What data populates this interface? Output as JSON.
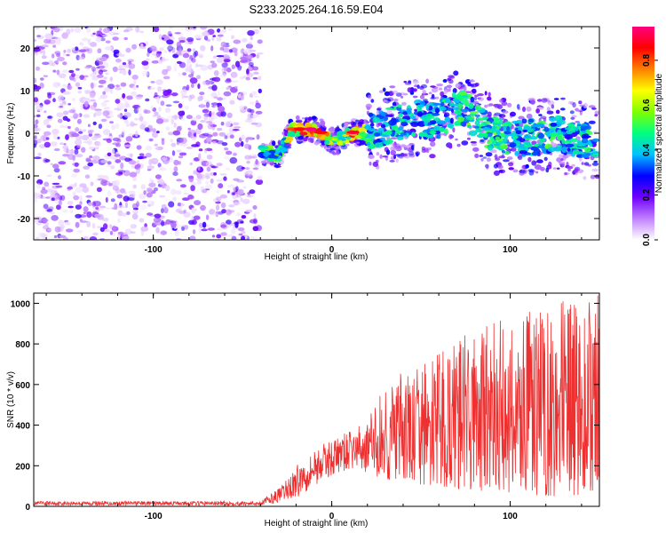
{
  "title": "S233.2025.264.16.59.E04",
  "chart_data": [
    {
      "type": "heatmap",
      "name": "spectrogram",
      "xlabel": "Height of straight line (km)",
      "ylabel": "Frequency (Hz)",
      "xlim": [
        -167,
        150
      ],
      "ylim": [
        -25,
        25
      ],
      "xticks": [
        -100,
        0,
        100
      ],
      "yticks": [
        -20,
        -10,
        0,
        10,
        20
      ],
      "colorbar": {
        "label": "Normalized spectral amplitude",
        "range": [
          0,
          0.95
        ],
        "ticks": [
          0.0,
          0.2,
          0.4,
          0.6,
          0.8
        ],
        "colors": [
          "#ffffff",
          "#c080ff",
          "#7000ff",
          "#0000ff",
          "#00c0ff",
          "#00ff80",
          "#80ff00",
          "#ffff00",
          "#ff8000",
          "#ff0000",
          "#ff0080"
        ]
      },
      "noise_region": {
        "x_range": [
          -167,
          -40
        ],
        "freq_range": [
          -25,
          25
        ],
        "amplitude": [
          0.02,
          0.25
        ]
      },
      "signal_ridge": [
        {
          "x": -40,
          "freq": -4.5,
          "amp": 0.45
        },
        {
          "x": -35,
          "freq": -4.5,
          "amp": 0.55
        },
        {
          "x": -30,
          "freq": -5.5,
          "amp": 0.55
        },
        {
          "x": -27,
          "freq": -3,
          "amp": 0.5
        },
        {
          "x": -22,
          "freq": 1,
          "amp": 0.8
        },
        {
          "x": -18,
          "freq": 1,
          "amp": 0.85
        },
        {
          "x": -12,
          "freq": 1,
          "amp": 0.95
        },
        {
          "x": -6,
          "freq": 0.2,
          "amp": 0.85
        },
        {
          "x": -2,
          "freq": -1.2,
          "amp": 0.7
        },
        {
          "x": 2,
          "freq": -2,
          "amp": 0.6
        },
        {
          "x": 8,
          "freq": -0.6,
          "amp": 0.7
        },
        {
          "x": 12,
          "freq": 0.2,
          "amp": 0.9
        },
        {
          "x": 16,
          "freq": 0.2,
          "amp": 0.75
        },
        {
          "x": 22,
          "freq": 0.5,
          "amp": 0.5
        },
        {
          "x": 30,
          "freq": 1.5,
          "amp": 0.45
        },
        {
          "x": 40,
          "freq": 3,
          "amp": 0.5
        },
        {
          "x": 50,
          "freq": 3.5,
          "amp": 0.45
        },
        {
          "x": 60,
          "freq": 3,
          "amp": 0.5
        },
        {
          "x": 68,
          "freq": 5.5,
          "amp": 0.45
        },
        {
          "x": 75,
          "freq": 6,
          "amp": 0.55
        },
        {
          "x": 85,
          "freq": 1,
          "amp": 0.5
        },
        {
          "x": 95,
          "freq": -1,
          "amp": 0.55
        },
        {
          "x": 105,
          "freq": -1,
          "amp": 0.45
        },
        {
          "x": 115,
          "freq": -1,
          "amp": 0.55
        },
        {
          "x": 125,
          "freq": 0,
          "amp": 0.5
        },
        {
          "x": 135,
          "freq": -1.5,
          "amp": 0.45
        },
        {
          "x": 145,
          "freq": -2,
          "amp": 0.5
        }
      ]
    },
    {
      "type": "line",
      "name": "snr",
      "xlabel": "Height of straight line (km)",
      "ylabel": "SNR (10 * v/v)",
      "xlim": [
        -167,
        150
      ],
      "ylim": [
        0,
        1050
      ],
      "xticks": [
        -100,
        0,
        100
      ],
      "yticks": [
        0,
        200,
        400,
        600,
        800,
        1000
      ],
      "color": "#ee3030",
      "envelope": [
        {
          "x": -167,
          "low": 5,
          "high": 25
        },
        {
          "x": -100,
          "low": 5,
          "high": 25
        },
        {
          "x": -40,
          "low": 5,
          "high": 25
        },
        {
          "x": -28,
          "low": 20,
          "high": 100
        },
        {
          "x": -20,
          "low": 40,
          "high": 200
        },
        {
          "x": -10,
          "low": 100,
          "high": 280
        },
        {
          "x": 0,
          "low": 150,
          "high": 330
        },
        {
          "x": 10,
          "low": 180,
          "high": 370
        },
        {
          "x": 20,
          "low": 160,
          "high": 420
        },
        {
          "x": 30,
          "low": 120,
          "high": 620
        },
        {
          "x": 50,
          "low": 100,
          "high": 700
        },
        {
          "x": 75,
          "low": 80,
          "high": 850
        },
        {
          "x": 100,
          "low": 60,
          "high": 950
        },
        {
          "x": 125,
          "low": 50,
          "high": 1000
        },
        {
          "x": 150,
          "low": 50,
          "high": 1050
        }
      ]
    }
  ]
}
